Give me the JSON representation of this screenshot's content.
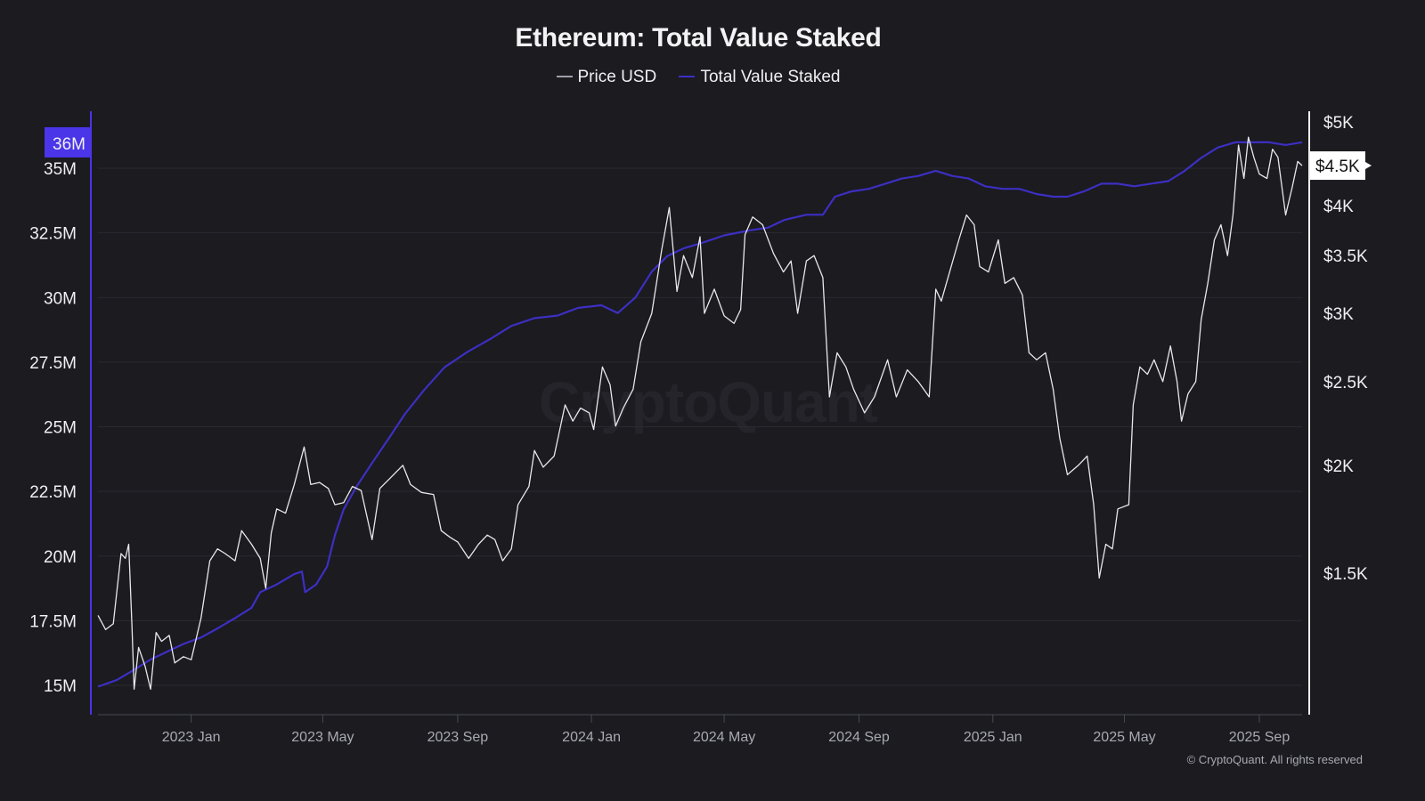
{
  "title": "Ethereum: Total Value Staked",
  "legend": [
    {
      "label": "Price USD",
      "color": "#a0a0a8"
    },
    {
      "label": "Total Value Staked",
      "color": "#3d2fc2"
    }
  ],
  "watermark": "CryptoQuant",
  "copyright": "© CryptoQuant. All rights reserved",
  "left_axis_highlight": {
    "label": "36M",
    "color": "#4a35e8"
  },
  "right_axis_highlight": {
    "label": "$4.5K"
  },
  "chart_data": {
    "type": "line",
    "title": "Ethereum: Total Value Staked",
    "xlabel": "",
    "x_ticks": [
      "2023 Jan",
      "2023 May",
      "2023 Sep",
      "2024 Jan",
      "2024 May",
      "2024 Sep",
      "2025 Jan",
      "2025 May",
      "2025 Sep"
    ],
    "x_range": [
      "2022-10-08",
      "2025-10-10"
    ],
    "grid": true,
    "legend_position": "top-center",
    "left_axis": {
      "label": "Total Value Staked",
      "scale": "linear",
      "range": [
        13.9,
        36.9
      ],
      "ticks": [
        "15M",
        "17.5M",
        "20M",
        "22.5M",
        "25M",
        "27.5M",
        "30M",
        "32.5M",
        "35M"
      ],
      "tick_values": [
        15,
        17.5,
        20,
        22.5,
        25,
        27.5,
        30,
        32.5,
        35
      ],
      "current_value_label": "36M"
    },
    "right_axis": {
      "label": "Price USD",
      "scale": "log",
      "range": [
        1070,
        5400
      ],
      "ticks": [
        "$1.5K",
        "$2K",
        "$2.5K",
        "$3K",
        "$3.5K",
        "$4K",
        "$5K"
      ],
      "tick_values": [
        1500,
        2000,
        2500,
        3000,
        3500,
        4000,
        5000
      ],
      "current_value_label": "$4.5K"
    },
    "series": [
      {
        "name": "Total Value Staked",
        "axis": "left",
        "unit": "M ETH",
        "points": [
          [
            "2022-10-08",
            14.95
          ],
          [
            "2022-10-25",
            15.2
          ],
          [
            "2022-11-10",
            15.6
          ],
          [
            "2022-11-25",
            16.0
          ],
          [
            "2022-12-10",
            16.3
          ],
          [
            "2022-12-25",
            16.6
          ],
          [
            "2023-01-10",
            16.85
          ],
          [
            "2023-01-25",
            17.2
          ],
          [
            "2023-02-10",
            17.6
          ],
          [
            "2023-02-25",
            18.0
          ],
          [
            "2023-03-05",
            18.6
          ],
          [
            "2023-03-20",
            18.9
          ],
          [
            "2023-04-05",
            19.3
          ],
          [
            "2023-04-12",
            19.4
          ],
          [
            "2023-04-15",
            18.6
          ],
          [
            "2023-04-25",
            18.9
          ],
          [
            "2023-05-05",
            19.6
          ],
          [
            "2023-05-12",
            20.8
          ],
          [
            "2023-05-20",
            21.8
          ],
          [
            "2023-06-01",
            22.7
          ],
          [
            "2023-06-15",
            23.6
          ],
          [
            "2023-07-01",
            24.6
          ],
          [
            "2023-07-15",
            25.5
          ],
          [
            "2023-08-01",
            26.4
          ],
          [
            "2023-08-20",
            27.3
          ],
          [
            "2023-09-10",
            27.9
          ],
          [
            "2023-10-01",
            28.4
          ],
          [
            "2023-10-20",
            28.9
          ],
          [
            "2023-11-10",
            29.2
          ],
          [
            "2023-12-01",
            29.3
          ],
          [
            "2023-12-20",
            29.6
          ],
          [
            "2024-01-10",
            29.7
          ],
          [
            "2024-01-25",
            29.4
          ],
          [
            "2024-02-10",
            30.0
          ],
          [
            "2024-02-25",
            31.0
          ],
          [
            "2024-03-10",
            31.6
          ],
          [
            "2024-03-25",
            31.9
          ],
          [
            "2024-04-10",
            32.1
          ],
          [
            "2024-05-01",
            32.4
          ],
          [
            "2024-05-25",
            32.6
          ],
          [
            "2024-06-10",
            32.7
          ],
          [
            "2024-06-25",
            33.0
          ],
          [
            "2024-07-15",
            33.2
          ],
          [
            "2024-07-30",
            33.2
          ],
          [
            "2024-08-10",
            33.9
          ],
          [
            "2024-08-25",
            34.1
          ],
          [
            "2024-09-10",
            34.2
          ],
          [
            "2024-09-25",
            34.4
          ],
          [
            "2024-10-10",
            34.6
          ],
          [
            "2024-10-25",
            34.7
          ],
          [
            "2024-11-10",
            34.9
          ],
          [
            "2024-11-25",
            34.7
          ],
          [
            "2024-12-10",
            34.6
          ],
          [
            "2024-12-25",
            34.3
          ],
          [
            "2025-01-10",
            34.2
          ],
          [
            "2025-01-25",
            34.2
          ],
          [
            "2025-02-10",
            34.0
          ],
          [
            "2025-02-25",
            33.9
          ],
          [
            "2025-03-10",
            33.9
          ],
          [
            "2025-03-25",
            34.1
          ],
          [
            "2025-04-10",
            34.4
          ],
          [
            "2025-04-25",
            34.4
          ],
          [
            "2025-05-10",
            34.3
          ],
          [
            "2025-05-25",
            34.4
          ],
          [
            "2025-06-10",
            34.5
          ],
          [
            "2025-06-25",
            34.9
          ],
          [
            "2025-07-10",
            35.4
          ],
          [
            "2025-07-25",
            35.8
          ],
          [
            "2025-08-10",
            36.0
          ],
          [
            "2025-08-25",
            36.0
          ],
          [
            "2025-09-10",
            36.0
          ],
          [
            "2025-09-25",
            35.9
          ],
          [
            "2025-10-10",
            36.0
          ]
        ]
      },
      {
        "name": "Price USD",
        "axis": "right",
        "unit": "USD",
        "points": [
          [
            "2022-10-08",
            1340
          ],
          [
            "2022-10-15",
            1290
          ],
          [
            "2022-10-22",
            1310
          ],
          [
            "2022-10-29",
            1580
          ],
          [
            "2022-11-02",
            1560
          ],
          [
            "2022-11-05",
            1620
          ],
          [
            "2022-11-08",
            1300
          ],
          [
            "2022-11-10",
            1100
          ],
          [
            "2022-11-14",
            1230
          ],
          [
            "2022-11-20",
            1170
          ],
          [
            "2022-11-25",
            1100
          ],
          [
            "2022-11-30",
            1280
          ],
          [
            "2022-12-05",
            1250
          ],
          [
            "2022-12-12",
            1270
          ],
          [
            "2022-12-17",
            1180
          ],
          [
            "2022-12-25",
            1200
          ],
          [
            "2023-01-01",
            1190
          ],
          [
            "2023-01-10",
            1330
          ],
          [
            "2023-01-18",
            1550
          ],
          [
            "2023-01-25",
            1600
          ],
          [
            "2023-02-01",
            1580
          ],
          [
            "2023-02-10",
            1550
          ],
          [
            "2023-02-16",
            1680
          ],
          [
            "2023-02-25",
            1620
          ],
          [
            "2023-03-05",
            1560
          ],
          [
            "2023-03-10",
            1440
          ],
          [
            "2023-03-15",
            1670
          ],
          [
            "2023-03-20",
            1780
          ],
          [
            "2023-03-28",
            1760
          ],
          [
            "2023-04-05",
            1900
          ],
          [
            "2023-04-14",
            2100
          ],
          [
            "2023-04-20",
            1900
          ],
          [
            "2023-04-28",
            1910
          ],
          [
            "2023-05-06",
            1880
          ],
          [
            "2023-05-12",
            1800
          ],
          [
            "2023-05-20",
            1810
          ],
          [
            "2023-05-28",
            1890
          ],
          [
            "2023-06-05",
            1870
          ],
          [
            "2023-06-10",
            1750
          ],
          [
            "2023-06-15",
            1640
          ],
          [
            "2023-06-22",
            1880
          ],
          [
            "2023-07-01",
            1930
          ],
          [
            "2023-07-13",
            2000
          ],
          [
            "2023-07-20",
            1900
          ],
          [
            "2023-07-30",
            1860
          ],
          [
            "2023-08-10",
            1850
          ],
          [
            "2023-08-17",
            1680
          ],
          [
            "2023-08-25",
            1650
          ],
          [
            "2023-09-01",
            1630
          ],
          [
            "2023-09-11",
            1560
          ],
          [
            "2023-09-20",
            1620
          ],
          [
            "2023-09-28",
            1660
          ],
          [
            "2023-10-05",
            1640
          ],
          [
            "2023-10-12",
            1550
          ],
          [
            "2023-10-20",
            1600
          ],
          [
            "2023-10-26",
            1800
          ],
          [
            "2023-11-05",
            1890
          ],
          [
            "2023-11-10",
            2080
          ],
          [
            "2023-11-18",
            1990
          ],
          [
            "2023-11-28",
            2050
          ],
          [
            "2023-12-08",
            2350
          ],
          [
            "2023-12-15",
            2250
          ],
          [
            "2023-12-22",
            2330
          ],
          [
            "2023-12-30",
            2300
          ],
          [
            "2024-01-03",
            2200
          ],
          [
            "2024-01-11",
            2600
          ],
          [
            "2024-01-18",
            2480
          ],
          [
            "2024-01-23",
            2220
          ],
          [
            "2024-01-30",
            2330
          ],
          [
            "2024-02-08",
            2450
          ],
          [
            "2024-02-15",
            2780
          ],
          [
            "2024-02-25",
            3000
          ],
          [
            "2024-03-05",
            3550
          ],
          [
            "2024-03-12",
            3980
          ],
          [
            "2024-03-19",
            3180
          ],
          [
            "2024-03-25",
            3500
          ],
          [
            "2024-04-02",
            3300
          ],
          [
            "2024-04-09",
            3680
          ],
          [
            "2024-04-13",
            3000
          ],
          [
            "2024-04-22",
            3200
          ],
          [
            "2024-05-01",
            2980
          ],
          [
            "2024-05-10",
            2920
          ],
          [
            "2024-05-16",
            3030
          ],
          [
            "2024-05-20",
            3700
          ],
          [
            "2024-05-27",
            3880
          ],
          [
            "2024-06-05",
            3800
          ],
          [
            "2024-06-15",
            3520
          ],
          [
            "2024-06-24",
            3350
          ],
          [
            "2024-07-01",
            3450
          ],
          [
            "2024-07-07",
            3000
          ],
          [
            "2024-07-15",
            3450
          ],
          [
            "2024-07-22",
            3500
          ],
          [
            "2024-07-30",
            3300
          ],
          [
            "2024-08-05",
            2400
          ],
          [
            "2024-08-12",
            2700
          ],
          [
            "2024-08-20",
            2600
          ],
          [
            "2024-08-27",
            2450
          ],
          [
            "2024-09-06",
            2300
          ],
          [
            "2024-09-15",
            2400
          ],
          [
            "2024-09-27",
            2650
          ],
          [
            "2024-10-05",
            2400
          ],
          [
            "2024-10-15",
            2580
          ],
          [
            "2024-10-25",
            2500
          ],
          [
            "2024-11-04",
            2400
          ],
          [
            "2024-11-10",
            3200
          ],
          [
            "2024-11-15",
            3100
          ],
          [
            "2024-11-24",
            3400
          ],
          [
            "2024-12-01",
            3650
          ],
          [
            "2024-12-08",
            3900
          ],
          [
            "2024-12-15",
            3800
          ],
          [
            "2024-12-20",
            3400
          ],
          [
            "2024-12-28",
            3350
          ],
          [
            "2025-01-06",
            3650
          ],
          [
            "2025-01-12",
            3250
          ],
          [
            "2025-01-20",
            3300
          ],
          [
            "2025-01-28",
            3150
          ],
          [
            "2025-02-03",
            2700
          ],
          [
            "2025-02-10",
            2650
          ],
          [
            "2025-02-18",
            2700
          ],
          [
            "2025-02-25",
            2450
          ],
          [
            "2025-03-03",
            2150
          ],
          [
            "2025-03-10",
            1950
          ],
          [
            "2025-03-20",
            2000
          ],
          [
            "2025-03-28",
            2050
          ],
          [
            "2025-04-03",
            1800
          ],
          [
            "2025-04-08",
            1480
          ],
          [
            "2025-04-14",
            1620
          ],
          [
            "2025-04-20",
            1600
          ],
          [
            "2025-04-25",
            1780
          ],
          [
            "2025-05-05",
            1800
          ],
          [
            "2025-05-09",
            2350
          ],
          [
            "2025-05-15",
            2600
          ],
          [
            "2025-05-22",
            2550
          ],
          [
            "2025-05-28",
            2650
          ],
          [
            "2025-06-05",
            2500
          ],
          [
            "2025-06-12",
            2750
          ],
          [
            "2025-06-18",
            2500
          ],
          [
            "2025-06-22",
            2250
          ],
          [
            "2025-06-28",
            2420
          ],
          [
            "2025-07-05",
            2500
          ],
          [
            "2025-07-10",
            2950
          ],
          [
            "2025-07-16",
            3250
          ],
          [
            "2025-07-22",
            3650
          ],
          [
            "2025-07-28",
            3800
          ],
          [
            "2025-08-03",
            3500
          ],
          [
            "2025-08-08",
            3900
          ],
          [
            "2025-08-13",
            4700
          ],
          [
            "2025-08-18",
            4300
          ],
          [
            "2025-08-22",
            4800
          ],
          [
            "2025-08-27",
            4550
          ],
          [
            "2025-09-01",
            4350
          ],
          [
            "2025-09-08",
            4300
          ],
          [
            "2025-09-13",
            4650
          ],
          [
            "2025-09-18",
            4550
          ],
          [
            "2025-09-25",
            3900
          ],
          [
            "2025-10-01",
            4200
          ],
          [
            "2025-10-06",
            4500
          ],
          [
            "2025-10-10",
            4450
          ]
        ]
      }
    ]
  }
}
